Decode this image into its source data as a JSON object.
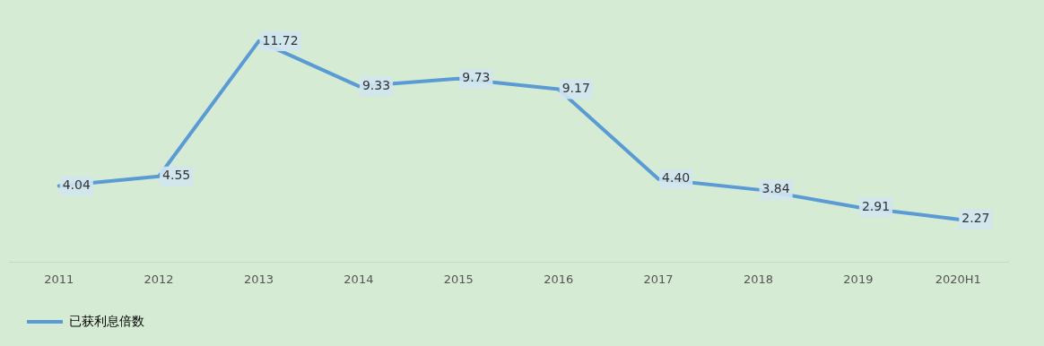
{
  "chart_data": {
    "type": "line",
    "categories": [
      "2011",
      "2012",
      "2013",
      "2014",
      "2015",
      "2016",
      "2017",
      "2018",
      "2019",
      "2020H1"
    ],
    "series": [
      {
        "name": "已获利息倍数",
        "color": "#5b9bd5",
        "values": [
          4.04,
          4.55,
          11.72,
          9.33,
          9.73,
          9.17,
          4.4,
          3.84,
          2.91,
          2.27
        ],
        "value_labels": [
          "4.04",
          "4.55",
          "11.72",
          "9.33",
          "9.73",
          "9.17",
          "4.40",
          "3.84",
          "2.91",
          "2.27"
        ]
      }
    ],
    "grid": false,
    "legend": "bottom left",
    "marker": "none",
    "line_style": "solid"
  }
}
